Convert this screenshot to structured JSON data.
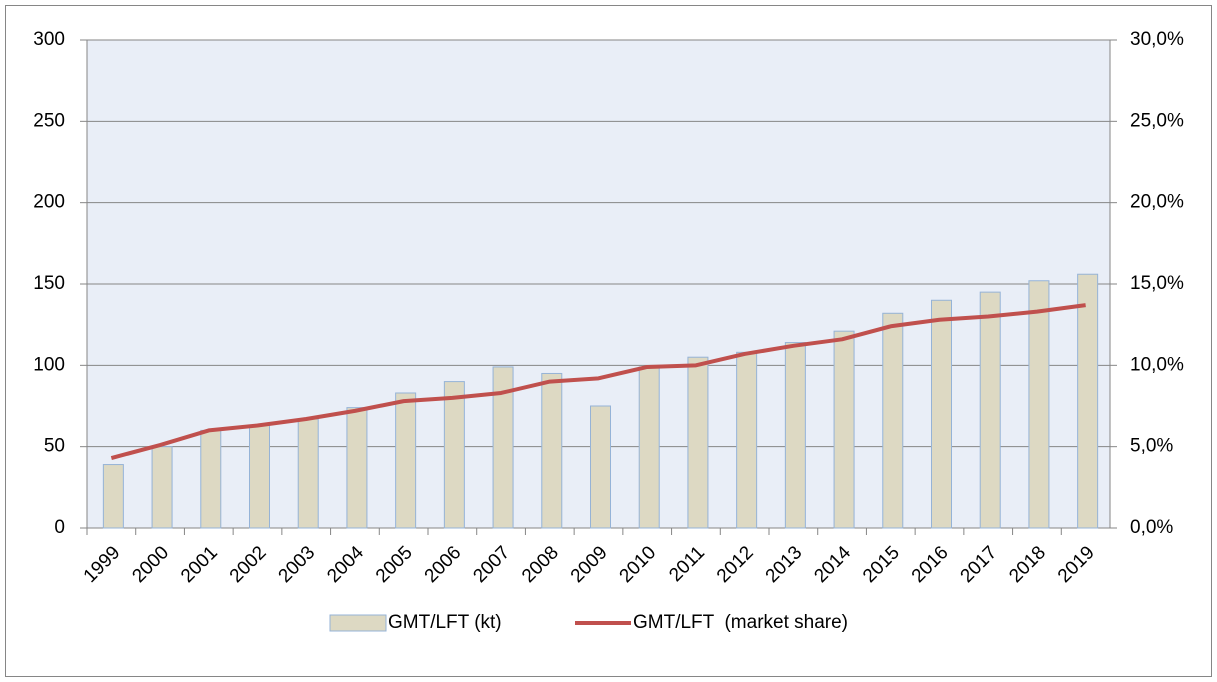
{
  "chart_data": {
    "type": "bar_line",
    "categories": [
      "1999",
      "2000",
      "2001",
      "2002",
      "2003",
      "2004",
      "2005",
      "2006",
      "2007",
      "2008",
      "2009",
      "2010",
      "2011",
      "2012",
      "2013",
      "2014",
      "2015",
      "2016",
      "2017",
      "2018",
      "2019"
    ],
    "series": [
      {
        "name": "GMT/LFT (kt)",
        "type": "bar",
        "color": "#ddd9c3",
        "values": [
          39,
          50,
          60,
          63,
          67,
          74,
          83,
          90,
          99,
          95,
          75,
          99,
          105,
          108,
          114,
          121,
          132,
          140,
          145,
          152,
          156
        ]
      },
      {
        "name": "GMT/LFT  (market share)",
        "type": "line",
        "axis": "y2",
        "color": "#c0504d",
        "values": [
          4.3,
          5.1,
          6.0,
          6.3,
          6.7,
          7.2,
          7.8,
          8.0,
          8.3,
          9.0,
          9.2,
          9.9,
          10.0,
          10.7,
          11.2,
          11.6,
          12.4,
          12.8,
          13.0,
          13.3,
          13.7
        ]
      }
    ],
    "ylim": [
      0,
      300
    ],
    "yticks": [
      0,
      50,
      100,
      150,
      200,
      250,
      300
    ],
    "y2lim": [
      0,
      30
    ],
    "y2ticks": [
      {
        "value": 0,
        "label": "0,0%"
      },
      {
        "value": 5,
        "label": "5,0%"
      },
      {
        "value": 10,
        "label": "10,0%"
      },
      {
        "value": 15,
        "label": "15,0%"
      },
      {
        "value": 20,
        "label": "20,0%"
      },
      {
        "value": 25,
        "label": "25,0%"
      },
      {
        "value": 30,
        "label": "30,0%"
      }
    ],
    "grid": true,
    "legend": "bottom"
  }
}
